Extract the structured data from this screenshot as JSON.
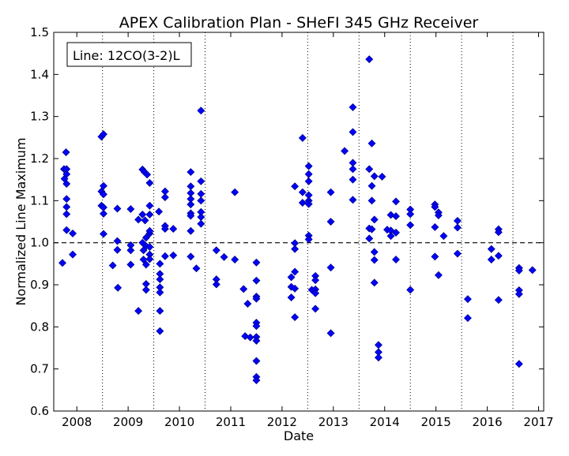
{
  "chart_data": {
    "type": "scatter",
    "title": "APEX Calibration Plan - SHeFI 345 GHz Receiver",
    "xlabel": "Date",
    "ylabel": "Normalized Line Maximum",
    "xlim": [
      2007.55,
      2017.1
    ],
    "ylim": [
      0.6,
      1.5
    ],
    "xticks": [
      2008,
      2009,
      2010,
      2011,
      2012,
      2013,
      2014,
      2015,
      2016,
      2017
    ],
    "xtick_labels": [
      "2008",
      "2009",
      "2010",
      "2011",
      "2012",
      "2013",
      "2014",
      "2015",
      "2016",
      "2017"
    ],
    "yticks": [
      0.6,
      0.7,
      0.8,
      0.9,
      1.0,
      1.1,
      1.2,
      1.3,
      1.4,
      1.5
    ],
    "ytick_labels": [
      "0.6",
      "0.7",
      "0.8",
      "0.9",
      "1.0",
      "1.1",
      "1.2",
      "1.3",
      "1.4",
      "1.5"
    ],
    "vertical_dotted_lines": [
      2008.5,
      2009.5,
      2010.5,
      2012.5,
      2013.5,
      2014.5,
      2015.5,
      2016.5
    ],
    "reference_line": 1.0,
    "legend_placement": "top-left",
    "annotation": "Line: 12CO(3-2)L",
    "marker_color": "#0000ff",
    "marker_edge_color": "#00008b",
    "points": [
      [
        2007.72,
        0.952
      ],
      [
        2007.75,
        1.175
      ],
      [
        2007.76,
        1.152
      ],
      [
        2007.79,
        1.215
      ],
      [
        2007.8,
        1.175
      ],
      [
        2007.8,
        1.163
      ],
      [
        2007.8,
        1.14
      ],
      [
        2007.8,
        1.104
      ],
      [
        2007.8,
        1.085
      ],
      [
        2007.8,
        1.068
      ],
      [
        2007.8,
        1.03
      ],
      [
        2007.92,
        1.022
      ],
      [
        2007.92,
        0.972
      ],
      [
        2008.48,
        1.252
      ],
      [
        2008.52,
        1.258
      ],
      [
        2008.48,
        1.122
      ],
      [
        2008.52,
        1.135
      ],
      [
        2008.52,
        1.115
      ],
      [
        2008.48,
        1.088
      ],
      [
        2008.52,
        1.084
      ],
      [
        2008.52,
        1.069
      ],
      [
        2008.52,
        1.021
      ],
      [
        2008.7,
        0.946
      ],
      [
        2008.79,
        1.081
      ],
      [
        2008.79,
        1.004
      ],
      [
        2008.79,
        0.983
      ],
      [
        2008.8,
        0.893
      ],
      [
        2009.05,
        1.08
      ],
      [
        2009.05,
        0.994
      ],
      [
        2009.05,
        0.982
      ],
      [
        2009.05,
        0.948
      ],
      [
        2009.2,
        0.838
      ],
      [
        2009.2,
        1.055
      ],
      [
        2009.28,
        1.174
      ],
      [
        2009.32,
        1.168
      ],
      [
        2009.37,
        1.162
      ],
      [
        2009.28,
        1.067
      ],
      [
        2009.33,
        1.053
      ],
      [
        2009.42,
        1.067
      ],
      [
        2009.42,
        1.088
      ],
      [
        2009.42,
        1.142
      ],
      [
        2009.28,
        1.0
      ],
      [
        2009.3,
        0.96
      ],
      [
        2009.3,
        0.982
      ],
      [
        2009.35,
        0.992
      ],
      [
        2009.35,
        1.012
      ],
      [
        2009.35,
        0.948
      ],
      [
        2009.35,
        0.902
      ],
      [
        2009.35,
        0.888
      ],
      [
        2009.42,
        0.99
      ],
      [
        2009.42,
        1.022
      ],
      [
        2009.42,
        1.028
      ],
      [
        2009.42,
        0.972
      ],
      [
        2009.42,
        0.961
      ],
      [
        2009.6,
        1.074
      ],
      [
        2009.62,
        0.95
      ],
      [
        2009.62,
        0.926
      ],
      [
        2009.62,
        0.913
      ],
      [
        2009.62,
        0.894
      ],
      [
        2009.62,
        0.882
      ],
      [
        2009.62,
        0.838
      ],
      [
        2009.62,
        0.79
      ],
      [
        2009.72,
        1.122
      ],
      [
        2009.72,
        1.108
      ],
      [
        2009.72,
        1.04
      ],
      [
        2009.72,
        1.033
      ],
      [
        2009.72,
        0.968
      ],
      [
        2009.88,
        1.033
      ],
      [
        2009.88,
        0.97
      ],
      [
        2010.22,
        1.168
      ],
      [
        2010.22,
        1.134
      ],
      [
        2010.22,
        1.118
      ],
      [
        2010.22,
        1.104
      ],
      [
        2010.22,
        1.091
      ],
      [
        2010.22,
        1.07
      ],
      [
        2010.22,
        1.064
      ],
      [
        2010.22,
        1.028
      ],
      [
        2010.22,
        0.967
      ],
      [
        2010.33,
        0.939
      ],
      [
        2010.42,
        1.314
      ],
      [
        2010.42,
        1.146
      ],
      [
        2010.42,
        1.116
      ],
      [
        2010.42,
        1.1
      ],
      [
        2010.42,
        1.073
      ],
      [
        2010.42,
        1.061
      ],
      [
        2010.42,
        1.045
      ],
      [
        2010.72,
        0.982
      ],
      [
        2010.72,
        0.913
      ],
      [
        2010.72,
        0.901
      ],
      [
        2010.87,
        0.966
      ],
      [
        2011.08,
        1.12
      ],
      [
        2011.08,
        0.96
      ],
      [
        2011.25,
        0.89
      ],
      [
        2011.28,
        0.778
      ],
      [
        2011.33,
        0.855
      ],
      [
        2011.38,
        0.775
      ],
      [
        2011.5,
        0.953
      ],
      [
        2011.5,
        0.91
      ],
      [
        2011.5,
        0.872
      ],
      [
        2011.5,
        0.867
      ],
      [
        2011.5,
        0.81
      ],
      [
        2011.5,
        0.802
      ],
      [
        2011.5,
        0.776
      ],
      [
        2011.5,
        0.767
      ],
      [
        2011.5,
        0.719
      ],
      [
        2011.5,
        0.681
      ],
      [
        2011.5,
        0.673
      ],
      [
        2012.18,
        0.918
      ],
      [
        2012.18,
        0.895
      ],
      [
        2012.18,
        0.87
      ],
      [
        2012.25,
        1.134
      ],
      [
        2012.25,
        0.999
      ],
      [
        2012.25,
        0.985
      ],
      [
        2012.25,
        0.931
      ],
      [
        2012.25,
        0.891
      ],
      [
        2012.25,
        0.823
      ],
      [
        2012.4,
        1.249
      ],
      [
        2012.4,
        1.12
      ],
      [
        2012.4,
        1.095
      ],
      [
        2012.52,
        1.182
      ],
      [
        2012.52,
        1.163
      ],
      [
        2012.52,
        1.146
      ],
      [
        2012.52,
        1.113
      ],
      [
        2012.52,
        1.1
      ],
      [
        2012.52,
        1.092
      ],
      [
        2012.52,
        1.017
      ],
      [
        2012.52,
        1.008
      ],
      [
        2012.58,
        0.888
      ],
      [
        2012.65,
        0.921
      ],
      [
        2012.65,
        0.911
      ],
      [
        2012.65,
        0.889
      ],
      [
        2012.65,
        0.88
      ],
      [
        2012.65,
        0.843
      ],
      [
        2012.95,
        1.12
      ],
      [
        2012.95,
        1.05
      ],
      [
        2012.95,
        0.941
      ],
      [
        2012.95,
        0.785
      ],
      [
        2013.22,
        1.218
      ],
      [
        2013.38,
        1.322
      ],
      [
        2013.38,
        1.263
      ],
      [
        2013.38,
        1.19
      ],
      [
        2013.38,
        1.175
      ],
      [
        2013.38,
        1.15
      ],
      [
        2013.38,
        1.102
      ],
      [
        2013.7,
        1.436
      ],
      [
        2013.7,
        1.175
      ],
      [
        2013.7,
        1.034
      ],
      [
        2013.7,
        1.01
      ],
      [
        2013.75,
        1.236
      ],
      [
        2013.75,
        1.135
      ],
      [
        2013.75,
        1.1
      ],
      [
        2013.75,
        1.032
      ],
      [
        2013.8,
        1.158
      ],
      [
        2013.8,
        1.055
      ],
      [
        2013.8,
        0.978
      ],
      [
        2013.8,
        0.959
      ],
      [
        2013.8,
        0.905
      ],
      [
        2013.88,
        0.757
      ],
      [
        2013.88,
        0.74
      ],
      [
        2013.88,
        0.727
      ],
      [
        2013.95,
        1.157
      ],
      [
        2014.05,
        1.031
      ],
      [
        2014.12,
        1.066
      ],
      [
        2014.12,
        1.029
      ],
      [
        2014.12,
        1.016
      ],
      [
        2014.22,
        1.098
      ],
      [
        2014.22,
        1.063
      ],
      [
        2014.22,
        1.024
      ],
      [
        2014.22,
        0.96
      ],
      [
        2014.5,
        1.079
      ],
      [
        2014.5,
        1.068
      ],
      [
        2014.5,
        1.042
      ],
      [
        2014.5,
        0.888
      ],
      [
        2014.98,
        1.091
      ],
      [
        2014.98,
        1.085
      ],
      [
        2014.98,
        1.037
      ],
      [
        2014.98,
        0.967
      ],
      [
        2015.05,
        1.072
      ],
      [
        2015.05,
        1.065
      ],
      [
        2015.05,
        0.923
      ],
      [
        2015.15,
        1.016
      ],
      [
        2015.42,
        1.052
      ],
      [
        2015.42,
        1.036
      ],
      [
        2015.42,
        0.974
      ],
      [
        2015.62,
        0.866
      ],
      [
        2015.62,
        0.821
      ],
      [
        2016.08,
        0.985
      ],
      [
        2016.08,
        0.96
      ],
      [
        2016.22,
        1.032
      ],
      [
        2016.22,
        1.025
      ],
      [
        2016.22,
        0.969
      ],
      [
        2016.22,
        0.864
      ],
      [
        2016.62,
        0.94
      ],
      [
        2016.62,
        0.934
      ],
      [
        2016.62,
        0.887
      ],
      [
        2016.62,
        0.878
      ],
      [
        2016.62,
        0.712
      ],
      [
        2016.88,
        0.935
      ]
    ]
  }
}
